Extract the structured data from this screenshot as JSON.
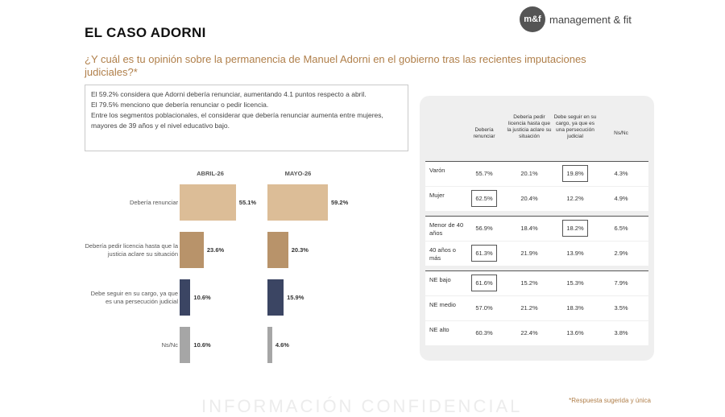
{
  "header": {
    "title": "EL CASO ADORNI",
    "logo_mark": "m&f",
    "logo_text": "management & fit"
  },
  "question": "¿Y cuál es tu opinión sobre la permanencia de Manuel Adorni en el gobierno tras las recientes imputaciones judiciales?*",
  "summary": [
    "El 59.2% considera que Adorni debería renunciar, aumentando 4.1 puntos respecto a abril.",
    "El 79.5% menciono que debería renunciar o pedir licencia.",
    "Entre los segmentos poblacionales, el considerar que debería renunciar aumenta entre mujeres, mayores de 39 años y el nivel educativo bajo."
  ],
  "chart_data": {
    "type": "bar",
    "orientation": "horizontal",
    "categories": [
      "Debería renunciar",
      "Debería pedir licencia hasta que la justicia aclare su situación",
      "Debe seguir en su cargo, ya que es una persecución judicial",
      "Ns/Nc"
    ],
    "series": [
      {
        "name": "ABRIL-26",
        "values": [
          55.1,
          23.6,
          10.6,
          10.6
        ],
        "labels": [
          "55.1%",
          "23.6%",
          "10.6%",
          "10.6%"
        ]
      },
      {
        "name": "MAYO-26",
        "values": [
          59.2,
          20.3,
          15.9,
          4.6
        ],
        "labels": [
          "59.2%",
          "20.3%",
          "15.9%",
          "4.6%"
        ]
      }
    ],
    "colors": [
      "#dcbd97",
      "#b8936a",
      "#3b4563",
      "#a6a6a6"
    ],
    "xlim": [
      0,
      60
    ]
  },
  "table": {
    "headers": [
      "Debería renunciar",
      "Debería pedir licencia hasta que la justicia aclare su situación",
      "Debe seguir en su cargo, ya que es una persecución judicial",
      "Ns/Nc"
    ],
    "rows": [
      {
        "label": "Varón",
        "values": [
          "55.7%",
          "20.1%",
          "19.8%",
          "4.3%"
        ],
        "highlight": 2
      },
      {
        "label": "Mujer",
        "values": [
          "62.5%",
          "20.4%",
          "12.2%",
          "4.9%"
        ],
        "highlight": 0
      },
      {
        "label": "Menor de 40 años",
        "values": [
          "56.9%",
          "18.4%",
          "18.2%",
          "6.5%"
        ],
        "highlight": 2
      },
      {
        "label": "40 años o más",
        "values": [
          "61.3%",
          "21.9%",
          "13.9%",
          "2.9%"
        ],
        "highlight": 0
      },
      {
        "label": "NE bajo",
        "values": [
          "61.6%",
          "15.2%",
          "15.3%",
          "7.9%"
        ],
        "highlight": 0
      },
      {
        "label": "NE medio",
        "values": [
          "57.0%",
          "21.2%",
          "18.3%",
          "3.5%"
        ],
        "highlight": -1
      },
      {
        "label": "NE alto",
        "values": [
          "60.3%",
          "22.4%",
          "13.6%",
          "3.8%"
        ],
        "highlight": -1
      }
    ]
  },
  "footnote": "*Respuesta sugerida y única",
  "watermark": "INFORMACIÓN CONFIDENCIAL"
}
